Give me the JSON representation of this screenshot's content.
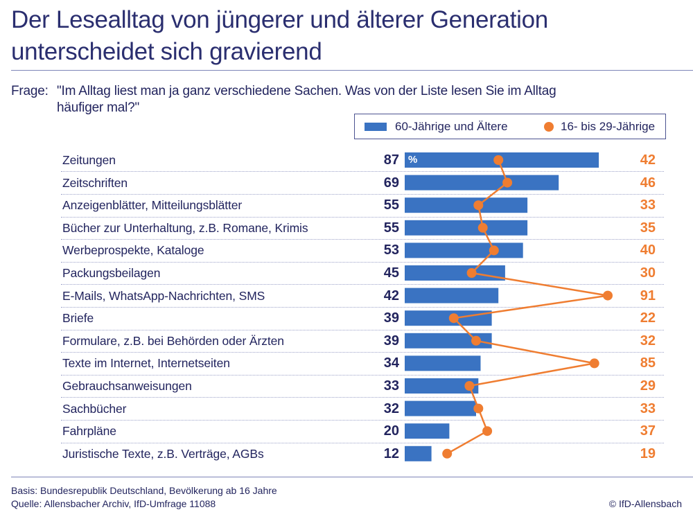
{
  "header": {
    "title_line1": "Der Lesealltag von jüngerer und älterer Generation",
    "title_line2": "unterscheidet sich gravierend"
  },
  "question": {
    "label": "Frage:",
    "line1": "\"Im Alltag liest man ja ganz verschiedene Sachen. Was von der Liste lesen Sie im Alltag",
    "line2": "häufiger mal?\""
  },
  "legend": {
    "series_a": "60-Jährige und Ältere",
    "series_b": "16- bis 29-Jährige"
  },
  "percent_marker": "%",
  "footer": {
    "basis": "Basis: Bundesrepublik Deutschland, Bevölkerung ab 16 Jahre",
    "source": "Quelle: Allensbacher Archiv, IfD-Umfrage 11088",
    "copyright": "© IfD-Allensbach"
  },
  "colors": {
    "bar": "#3a73c2",
    "line": "#ef7d31",
    "text": "#22245e"
  },
  "chart_data": {
    "type": "bar",
    "orientation": "horizontal",
    "categories": [
      "Zeitungen",
      "Zeitschriften",
      "Anzeigenblätter, Mitteilungsblätter",
      "Bücher zur Unterhaltung, z.B. Romane, Krimis",
      "Werbeprospekte, Kataloge",
      "Packungsbeilagen",
      "E-Mails, WhatsApp-Nachrichten, SMS",
      "Briefe",
      "Formulare, z.B. bei Behörden oder Ärzten",
      "Texte im Internet, Internetseiten",
      "Gebrauchsanweisungen",
      "Sachbücher",
      "Fahrpläne",
      "Juristische Texte, z.B. Verträge, AGBs"
    ],
    "series": [
      {
        "name": "60-Jährige und Ältere",
        "type": "bar",
        "values": [
          87,
          69,
          55,
          55,
          53,
          45,
          42,
          39,
          39,
          34,
          33,
          32,
          20,
          12
        ]
      },
      {
        "name": "16- bis 29-Jährige",
        "type": "line",
        "values": [
          42,
          46,
          33,
          35,
          40,
          30,
          91,
          22,
          32,
          85,
          29,
          33,
          37,
          19
        ]
      }
    ],
    "unit": "%",
    "xlim": [
      0,
      100
    ],
    "grid": false,
    "legend_position": "top-right"
  }
}
